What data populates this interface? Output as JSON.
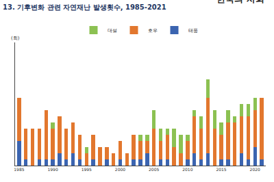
{
  "chart_data": {
    "type": "bar",
    "stacked": true,
    "title": "13. 기후변화 관련 자연재난 발생횟수, 1985-2021",
    "y_label": "(회)",
    "annotations": [
      "한국의 사회"
    ],
    "legend": "top",
    "tick_labels": "x",
    "grid": false,
    "ylim": [
      0,
      20
    ],
    "categories": [
      "1985",
      null,
      null,
      null,
      null,
      "1990",
      null,
      null,
      null,
      null,
      "1995",
      null,
      null,
      null,
      null,
      "2000",
      null,
      null,
      null,
      null,
      "2005",
      null,
      null,
      null,
      null,
      "2010",
      null,
      null,
      null,
      null,
      "2015",
      null,
      null,
      null,
      null,
      "2020",
      null
    ],
    "series": [
      {
        "name": "태풍",
        "color": "#3b64b0",
        "values": [
          4,
          1,
          0,
          1,
          1,
          1,
          2,
          1,
          2,
          1,
          0,
          1,
          0,
          1,
          0,
          1,
          0,
          1,
          1,
          2,
          0,
          1,
          1,
          0,
          0,
          1,
          2,
          1,
          2,
          0,
          1,
          1,
          0,
          2,
          1,
          3,
          1
        ]
      },
      {
        "name": "호우",
        "color": "#e2772e",
        "values": [
          7,
          5,
          6,
          5,
          8,
          5,
          6,
          5,
          5,
          4,
          2,
          4,
          3,
          2,
          2,
          3,
          2,
          4,
          3,
          2,
          6,
          3,
          4,
          3,
          2,
          3,
          6,
          5,
          9,
          6,
          4,
          6,
          7,
          6,
          7,
          6,
          10
        ]
      },
      {
        "name": "대설",
        "color": "#8cc152",
        "values": [
          0,
          0,
          0,
          0,
          0,
          1,
          0,
          0,
          0,
          0,
          1,
          0,
          0,
          0,
          0,
          0,
          0,
          0,
          1,
          1,
          3,
          2,
          1,
          3,
          3,
          1,
          1,
          2,
          3,
          3,
          2,
          2,
          1,
          2,
          2,
          2,
          0
        ]
      }
    ]
  }
}
